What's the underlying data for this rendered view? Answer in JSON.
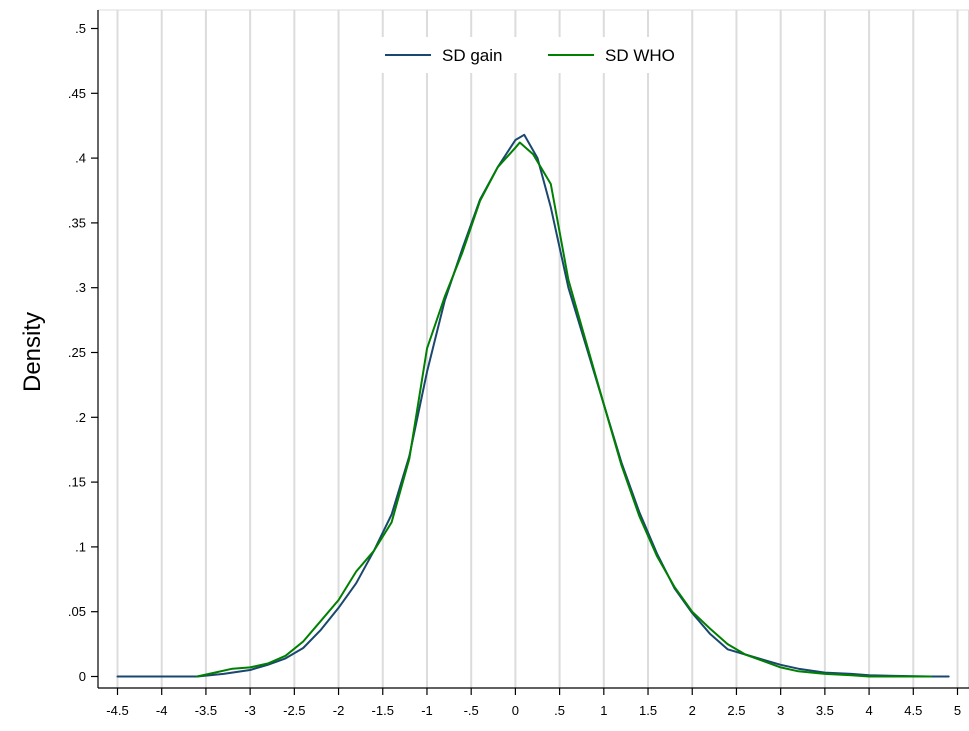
{
  "chart_data": {
    "type": "line",
    "title": "",
    "xlabel": "",
    "ylabel": "Density",
    "xlim": [
      -4.5,
      5
    ],
    "ylim": [
      0,
      0.5
    ],
    "grid": "vertical",
    "legend_position": "top-center",
    "x_ticks": [
      -4.5,
      -4,
      -3.5,
      -3,
      -2.5,
      -2,
      -1.5,
      -1,
      -0.5,
      0,
      0.5,
      1,
      1.5,
      2,
      2.5,
      3,
      3.5,
      4,
      4.5,
      5
    ],
    "x_tick_labels": [
      "-4.5",
      "-4",
      "-3.5",
      "-3",
      "-2.5",
      "-2",
      "-1.5",
      "-1",
      "-.5",
      "0",
      ".5",
      "1",
      "1.5",
      "2",
      "2.5",
      "3",
      "3.5",
      "4",
      "4.5",
      "5"
    ],
    "y_ticks": [
      0,
      0.05,
      0.1,
      0.15,
      0.2,
      0.25,
      0.3,
      0.35,
      0.4,
      0.45,
      0.5
    ],
    "y_tick_labels": [
      "0",
      ".05",
      ".1",
      ".15",
      ".2",
      ".25",
      ".3",
      ".35",
      ".4",
      ".45",
      ".5"
    ],
    "series": [
      {
        "name": "SD gain",
        "color": "#1a476f",
        "x": [
          -4.5,
          -4.2,
          -3.9,
          -3.6,
          -3.3,
          -3.0,
          -2.8,
          -2.6,
          -2.4,
          -2.2,
          -2.0,
          -1.8,
          -1.6,
          -1.4,
          -1.2,
          -1.0,
          -0.8,
          -0.6,
          -0.4,
          -0.2,
          0.0,
          0.1,
          0.25,
          0.4,
          0.6,
          0.8,
          1.0,
          1.2,
          1.4,
          1.6,
          1.8,
          2.0,
          2.2,
          2.4,
          2.6,
          2.8,
          3.0,
          3.2,
          3.5,
          3.8,
          4.0,
          4.3,
          4.7,
          4.9
        ],
        "y": [
          0,
          0,
          0,
          0,
          0.002,
          0.005,
          0.009,
          0.014,
          0.022,
          0.036,
          0.053,
          0.072,
          0.097,
          0.125,
          0.17,
          0.235,
          0.29,
          0.33,
          0.368,
          0.393,
          0.414,
          0.418,
          0.4,
          0.362,
          0.3,
          0.255,
          0.21,
          0.165,
          0.127,
          0.095,
          0.068,
          0.049,
          0.033,
          0.021,
          0.017,
          0.013,
          0.009,
          0.006,
          0.003,
          0.002,
          0.001,
          0.0005,
          0,
          0
        ]
      },
      {
        "name": "SD WHO",
        "color": "#008000",
        "x": [
          -3.6,
          -3.4,
          -3.2,
          -3.0,
          -2.8,
          -2.6,
          -2.4,
          -2.2,
          -2.0,
          -1.8,
          -1.6,
          -1.4,
          -1.2,
          -1.0,
          -0.8,
          -0.6,
          -0.4,
          -0.2,
          0.0,
          0.05,
          0.2,
          0.4,
          0.6,
          0.8,
          1.0,
          1.2,
          1.4,
          1.6,
          1.8,
          2.0,
          2.2,
          2.4,
          2.6,
          2.8,
          3.0,
          3.2,
          3.5,
          3.8,
          4.0,
          4.3,
          4.7
        ],
        "y": [
          0,
          0.003,
          0.006,
          0.007,
          0.01,
          0.016,
          0.027,
          0.043,
          0.059,
          0.081,
          0.097,
          0.119,
          0.168,
          0.253,
          0.293,
          0.327,
          0.367,
          0.393,
          0.408,
          0.412,
          0.403,
          0.38,
          0.306,
          0.258,
          0.21,
          0.163,
          0.124,
          0.093,
          0.069,
          0.05,
          0.037,
          0.025,
          0.017,
          0.012,
          0.007,
          0.004,
          0.002,
          0.001,
          0,
          0,
          0
        ]
      }
    ]
  }
}
